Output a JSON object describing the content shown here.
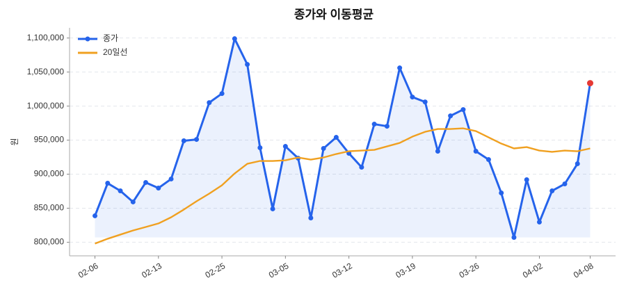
{
  "chart_data": {
    "type": "line",
    "title": "종가와 이동평균",
    "y_label": "원",
    "categories": [
      "02-06",
      null,
      null,
      null,
      null,
      "02-13",
      null,
      null,
      null,
      null,
      "02-25",
      null,
      null,
      null,
      null,
      "03-05",
      null,
      null,
      null,
      null,
      "03-12",
      null,
      null,
      null,
      null,
      "03-19",
      null,
      null,
      null,
      null,
      "03-26",
      null,
      null,
      null,
      null,
      "04-02",
      null,
      null,
      null,
      "04-08"
    ],
    "series": [
      {
        "name": "종가",
        "color": "#2563eb",
        "markers": true,
        "fill": true,
        "last_point_color": "#e53935",
        "values": [
          838800,
          886700,
          875500,
          859200,
          887800,
          879600,
          892900,
          949000,
          951000,
          1005100,
          1018400,
          1099000,
          1061200,
          938800,
          849000,
          940800,
          923500,
          835700,
          937800,
          954100,
          930600,
          910200,
          973500,
          970400,
          1056100,
          1013300,
          1006100,
          933700,
          985700,
          994900,
          933700,
          921400,
          872400,
          807100,
          891800,
          829600,
          875500,
          885700,
          915300,
          1033700
        ]
      },
      {
        "name": "20일선",
        "color": "#f0a020",
        "markers": false,
        "fill": false,
        "values": [
          798000,
          805100,
          811200,
          817300,
          822400,
          827600,
          836700,
          848000,
          860200,
          871400,
          883700,
          901000,
          915300,
          919400,
          919400,
          920400,
          924500,
          921400,
          924500,
          929600,
          933700,
          934700,
          935700,
          940800,
          945900,
          955100,
          962200,
          966300,
          966300,
          967300,
          963300,
          954100,
          944900,
          937800,
          939800,
          934700,
          932700,
          934700,
          933700,
          937800
        ]
      }
    ],
    "ylim": [
      780000,
      1115000
    ],
    "yticks": [
      {
        "value": 800000,
        "label": "800,000"
      },
      {
        "value": 850000,
        "label": "850,000"
      },
      {
        "value": 900000,
        "label": "900,000"
      },
      {
        "value": 950000,
        "label": "950,000"
      },
      {
        "value": 1000000,
        "label": "1,000,000"
      },
      {
        "value": 1050000,
        "label": "1,050,000"
      },
      {
        "value": 1100000,
        "label": "1,100,000"
      }
    ],
    "grid": true,
    "legend": "upper-left"
  }
}
